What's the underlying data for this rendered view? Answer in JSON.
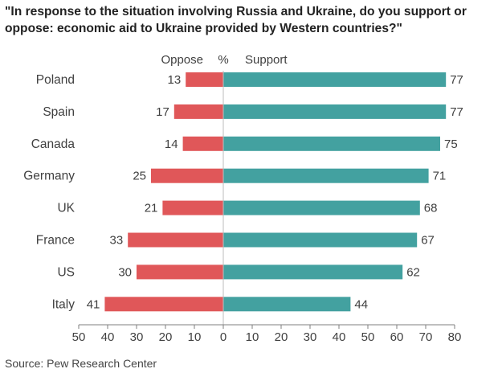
{
  "title_lines": [
    "\"In response to the situation involving Russia and Ukraine, do you support or",
    "oppose: economic aid to Ukraine provided by Western countries?\""
  ],
  "source": "Source: Pew Research Center",
  "colors": {
    "oppose": "#e05759",
    "support": "#43a1a0",
    "axis": "#7f7f7f",
    "text": "#404040"
  },
  "chart_data": {
    "type": "bar",
    "orientation": "horizontal",
    "layout": "diverging",
    "categories": [
      "Poland",
      "Spain",
      "Canada",
      "Germany",
      "UK",
      "France",
      "US",
      "Italy"
    ],
    "series": [
      {
        "name": "Oppose",
        "side": "left",
        "values": [
          13,
          17,
          14,
          25,
          21,
          33,
          30,
          41
        ]
      },
      {
        "name": "Support",
        "side": "right",
        "values": [
          77,
          77,
          75,
          71,
          68,
          67,
          62,
          44
        ]
      }
    ],
    "center_label": "%",
    "xlim": [
      -50,
      80
    ],
    "xticks": [
      -50,
      -40,
      -30,
      -20,
      -10,
      0,
      10,
      20,
      30,
      40,
      50,
      60,
      70,
      80
    ],
    "xtick_labels": [
      "50",
      "40",
      "30",
      "20",
      "10",
      "0",
      "10",
      "20",
      "30",
      "40",
      "50",
      "60",
      "70",
      "80"
    ],
    "grid": false,
    "data_labels": true,
    "legend": "top-center"
  }
}
